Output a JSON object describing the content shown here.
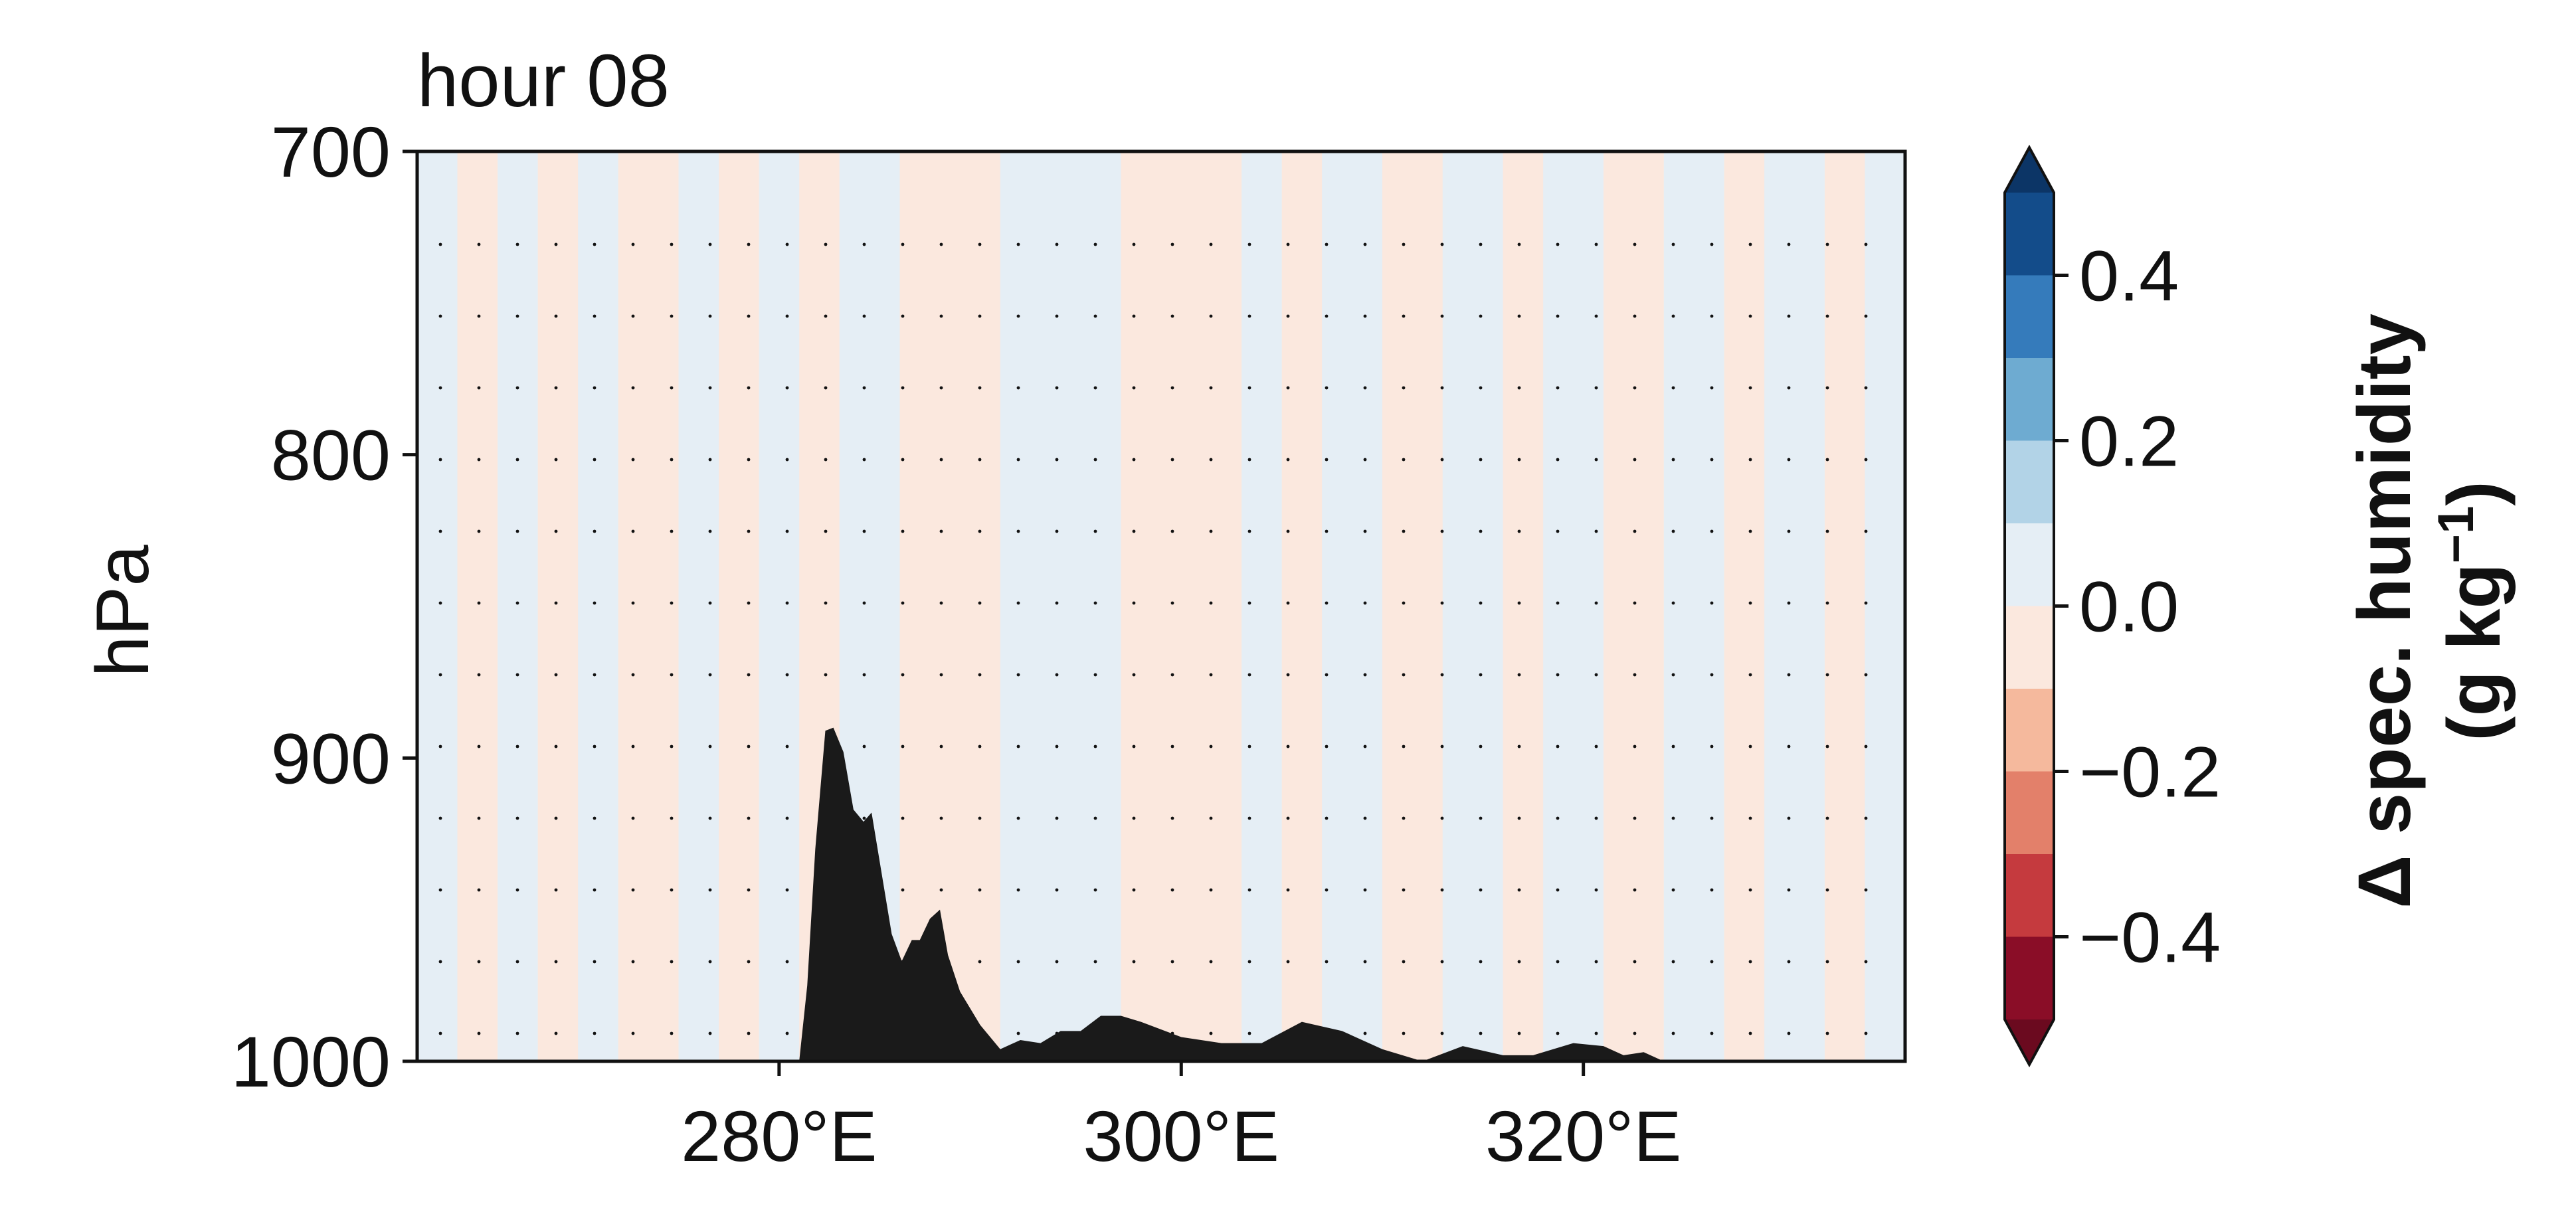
{
  "chart_data": {
    "type": "heatmap",
    "title": "hour 08",
    "ylabel": "hPa",
    "xlabel": "",
    "x_range": [
      262,
      336
    ],
    "y_range": [
      1000,
      700
    ],
    "y_ticks": [
      700,
      800,
      900,
      1000
    ],
    "y_tick_labels": [
      "700",
      "800",
      "900",
      "1000"
    ],
    "x_ticks": [
      280,
      300,
      320
    ],
    "x_tick_labels": [
      "280°E",
      "300°E",
      "320°E"
    ],
    "field_description": "specific humidity difference, mostly between -0.05 and 0.05 g/kg, alternating columns",
    "columns": [
      {
        "x0": 262,
        "x1": 264,
        "v": 0.02
      },
      {
        "x0": 264,
        "x1": 266,
        "v": -0.02
      },
      {
        "x0": 266,
        "x1": 268,
        "v": 0.02
      },
      {
        "x0": 268,
        "x1": 270,
        "v": -0.02
      },
      {
        "x0": 270,
        "x1": 272,
        "v": 0.02
      },
      {
        "x0": 272,
        "x1": 275,
        "v": -0.02
      },
      {
        "x0": 275,
        "x1": 277,
        "v": 0.02
      },
      {
        "x0": 277,
        "x1": 279,
        "v": -0.02
      },
      {
        "x0": 279,
        "x1": 281,
        "v": 0.02
      },
      {
        "x0": 281,
        "x1": 283,
        "v": -0.02
      },
      {
        "x0": 283,
        "x1": 286,
        "v": 0.02
      },
      {
        "x0": 286,
        "x1": 291,
        "v": -0.02
      },
      {
        "x0": 291,
        "x1": 297,
        "v": 0.02
      },
      {
        "x0": 297,
        "x1": 303,
        "v": -0.02
      },
      {
        "x0": 303,
        "x1": 305,
        "v": 0.02
      },
      {
        "x0": 305,
        "x1": 307,
        "v": -0.02
      },
      {
        "x0": 307,
        "x1": 310,
        "v": 0.02
      },
      {
        "x0": 310,
        "x1": 313,
        "v": -0.02
      },
      {
        "x0": 313,
        "x1": 316,
        "v": 0.02
      },
      {
        "x0": 316,
        "x1": 318,
        "v": -0.02
      },
      {
        "x0": 318,
        "x1": 321,
        "v": 0.02
      },
      {
        "x0": 321,
        "x1": 324,
        "v": -0.02
      },
      {
        "x0": 324,
        "x1": 327,
        "v": 0.02
      },
      {
        "x0": 327,
        "x1": 329,
        "v": -0.02
      },
      {
        "x0": 329,
        "x1": 332,
        "v": 0.02
      },
      {
        "x0": 332,
        "x1": 334,
        "v": -0.02
      },
      {
        "x0": 334,
        "x1": 336,
        "v": 0.02
      }
    ],
    "terrain": {
      "x": [
        281.0,
        281.4,
        281.8,
        282.3,
        282.7,
        283.2,
        283.7,
        284.2,
        284.6,
        285.1,
        285.6,
        286.1,
        286.6,
        287.0,
        287.5,
        288.0,
        288.4,
        289.0,
        290.0,
        291.0,
        292.0,
        293.0,
        294.0,
        295.0,
        296.0,
        297.0,
        298.0,
        300.0,
        302.0,
        304.0,
        306.0,
        308.0,
        310.0,
        312.0,
        314.0,
        316.0,
        317.5,
        318.5,
        319.5,
        321.0,
        322.0,
        323.0,
        324.0
      ],
      "p": [
        1000,
        975,
        930,
        891,
        890,
        898,
        917,
        921,
        918,
        938,
        958,
        967,
        960,
        960,
        953,
        950,
        965,
        977,
        988,
        996,
        993,
        994,
        990,
        990,
        985,
        985,
        987,
        992,
        994,
        994,
        987,
        990,
        996,
        1000,
        995,
        998,
        998,
        996,
        994,
        995,
        998,
        997,
        1000
      ]
    },
    "colorbar": {
      "label_line1": "Δ spec. humidity",
      "label_line2_text": "(g kg",
      "label_line2_sup": "−1",
      "label_line2_close": ")",
      "ticks": [
        0.4,
        0.2,
        0.0,
        -0.2,
        -0.4
      ],
      "tick_labels": [
        "0.4",
        "0.2",
        "0.0",
        "−0.2",
        "−0.4"
      ],
      "range": [
        -0.5,
        0.5
      ],
      "extend": "both",
      "levels": [
        {
          "lo": 0.4,
          "hi": 0.5,
          "color": "#134c8a"
        },
        {
          "lo": 0.3,
          "hi": 0.4,
          "color": "#357bbb"
        },
        {
          "lo": 0.2,
          "hi": 0.3,
          "color": "#6eabd1"
        },
        {
          "lo": 0.1,
          "hi": 0.2,
          "color": "#b2d3e7"
        },
        {
          "lo": 0.0,
          "hi": 0.1,
          "color": "#e5eef5"
        },
        {
          "lo": -0.1,
          "hi": 0.0,
          "color": "#fbe8de"
        },
        {
          "lo": -0.2,
          "hi": -0.1,
          "color": "#f5b99d"
        },
        {
          "lo": -0.3,
          "hi": -0.2,
          "color": "#e3806a"
        },
        {
          "lo": -0.4,
          "hi": -0.3,
          "color": "#c53a3e"
        },
        {
          "lo": -0.5,
          "hi": -0.4,
          "color": "#8a0d27"
        }
      ],
      "over_color": "#0c3566",
      "under_color": "#6b0a1f"
    },
    "terrain_color": "#1a1a1a",
    "frame_color": "#111111"
  }
}
